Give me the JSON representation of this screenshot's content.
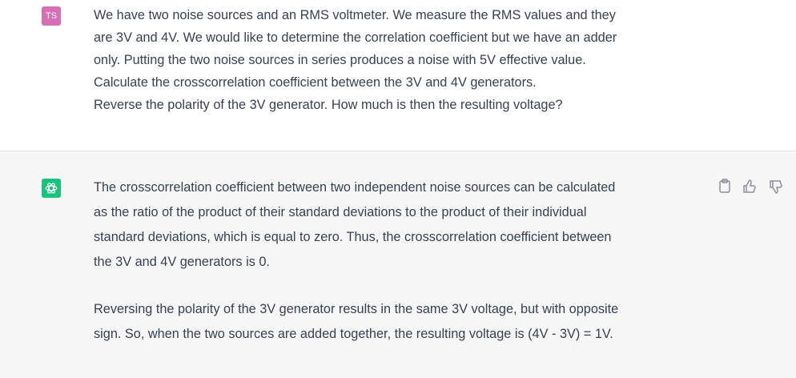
{
  "user": {
    "avatar": "TS",
    "lines": [
      "We have two noise sources and an RMS voltmeter. We measure the RMS values and they",
      "are 3V and 4V. We would like to determine the correlation coefficient but we have an adder",
      "only. Putting the two noise sources in series produces a noise with 5V effective value.",
      "Calculate the crosscorrelation coefficient between the 3V and 4V generators.",
      "Reverse the polarity of the 3V generator. How much is then the resulting voltage?"
    ]
  },
  "assistant": {
    "paragraphs": [
      [
        "The crosscorrelation coefficient between two independent noise sources can be calculated",
        "as the ratio of the product of their standard deviations to the product of their individual",
        "standard deviations, which is equal to zero. Thus, the crosscorrelation coefficient between",
        "the 3V and 4V generators is 0."
      ],
      [
        "Reversing the polarity of the 3V generator results in the same 3V voltage, but with opposite",
        "sign. So, when the two sources are added together, the resulting voltage is (4V - 3V) = 1V."
      ]
    ]
  }
}
